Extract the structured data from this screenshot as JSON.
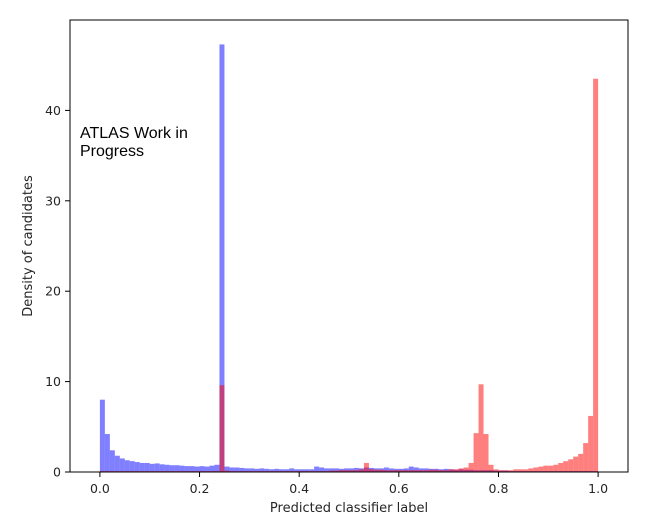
{
  "chart_data": {
    "type": "bar",
    "xlabel": "Predicted classifier label",
    "ylabel": "Density of candidates",
    "xlim": [
      -0.06,
      1.06
    ],
    "ylim": [
      0,
      50
    ],
    "xticks": [
      0.0,
      0.2,
      0.4,
      0.6,
      0.8,
      1.0
    ],
    "xtick_labels": [
      "0.0",
      "0.2",
      "0.4",
      "0.6",
      "0.8",
      "1.0"
    ],
    "yticks": [
      0,
      10,
      20,
      30,
      40
    ],
    "ytick_labels": [
      "0",
      "10",
      "20",
      "30",
      "40"
    ],
    "grid": false,
    "legend": "none",
    "bin_width": 0.01,
    "annotation_lines": [
      "ATLAS Work in",
      "Progress"
    ],
    "series": [
      {
        "color": "#0000ff",
        "opacity": 0.5,
        "bin_start": 0.0,
        "values": [
          8.0,
          4.2,
          2.4,
          1.8,
          1.5,
          1.3,
          1.2,
          1.1,
          1.0,
          1.0,
          0.9,
          0.95,
          0.85,
          0.8,
          0.75,
          0.75,
          0.7,
          0.65,
          0.65,
          0.6,
          0.65,
          0.6,
          0.7,
          0.8,
          47.3,
          0.6,
          0.5,
          0.5,
          0.45,
          0.4,
          0.4,
          0.35,
          0.4,
          0.35,
          0.3,
          0.35,
          0.3,
          0.3,
          0.4,
          0.3,
          0.3,
          0.3,
          0.3,
          0.6,
          0.5,
          0.4,
          0.4,
          0.4,
          0.35,
          0.4,
          0.4,
          0.45,
          0.4,
          0.5,
          0.45,
          0.4,
          0.4,
          0.5,
          0.4,
          0.35,
          0.35,
          0.4,
          0.6,
          0.5,
          0.4,
          0.4,
          0.35,
          0.35,
          0.3,
          0.35,
          0.3,
          0.25,
          0.3,
          0.25,
          0.25,
          0.2,
          0.2,
          0.2,
          0.2,
          0.15,
          0.15,
          0.15,
          0.1,
          0.1,
          0.1,
          0.1,
          0.1,
          0.1,
          0.1,
          0.1,
          0.1,
          0.1,
          0.1,
          0.1,
          0.1,
          0.1,
          0.1,
          0.1,
          0.1,
          0.1
        ]
      },
      {
        "color": "#ff0000",
        "opacity": 0.5,
        "bin_start": 0.0,
        "values": [
          0.1,
          0.1,
          0.1,
          0.1,
          0.1,
          0.1,
          0.1,
          0.1,
          0.1,
          0.1,
          0.1,
          0.1,
          0.1,
          0.1,
          0.1,
          0.1,
          0.1,
          0.1,
          0.1,
          0.1,
          0.1,
          0.1,
          0.1,
          0.1,
          9.6,
          0.15,
          0.1,
          0.1,
          0.1,
          0.1,
          0.1,
          0.1,
          0.1,
          0.1,
          0.1,
          0.1,
          0.1,
          0.1,
          0.1,
          0.1,
          0.1,
          0.1,
          0.1,
          0.1,
          0.1,
          0.1,
          0.15,
          0.15,
          0.2,
          0.2,
          0.2,
          0.2,
          0.3,
          1.0,
          0.3,
          0.25,
          0.25,
          0.2,
          0.2,
          0.2,
          0.2,
          0.2,
          0.2,
          0.2,
          0.2,
          0.2,
          0.25,
          0.25,
          0.2,
          0.2,
          0.3,
          0.3,
          0.4,
          0.5,
          1.0,
          4.3,
          9.7,
          4.2,
          0.8,
          0.3,
          0.2,
          0.2,
          0.2,
          0.3,
          0.3,
          0.3,
          0.4,
          0.5,
          0.6,
          0.7,
          0.7,
          0.8,
          1.0,
          1.2,
          1.4,
          1.7,
          2.0,
          3.2,
          6.2,
          43.5
        ]
      }
    ]
  }
}
